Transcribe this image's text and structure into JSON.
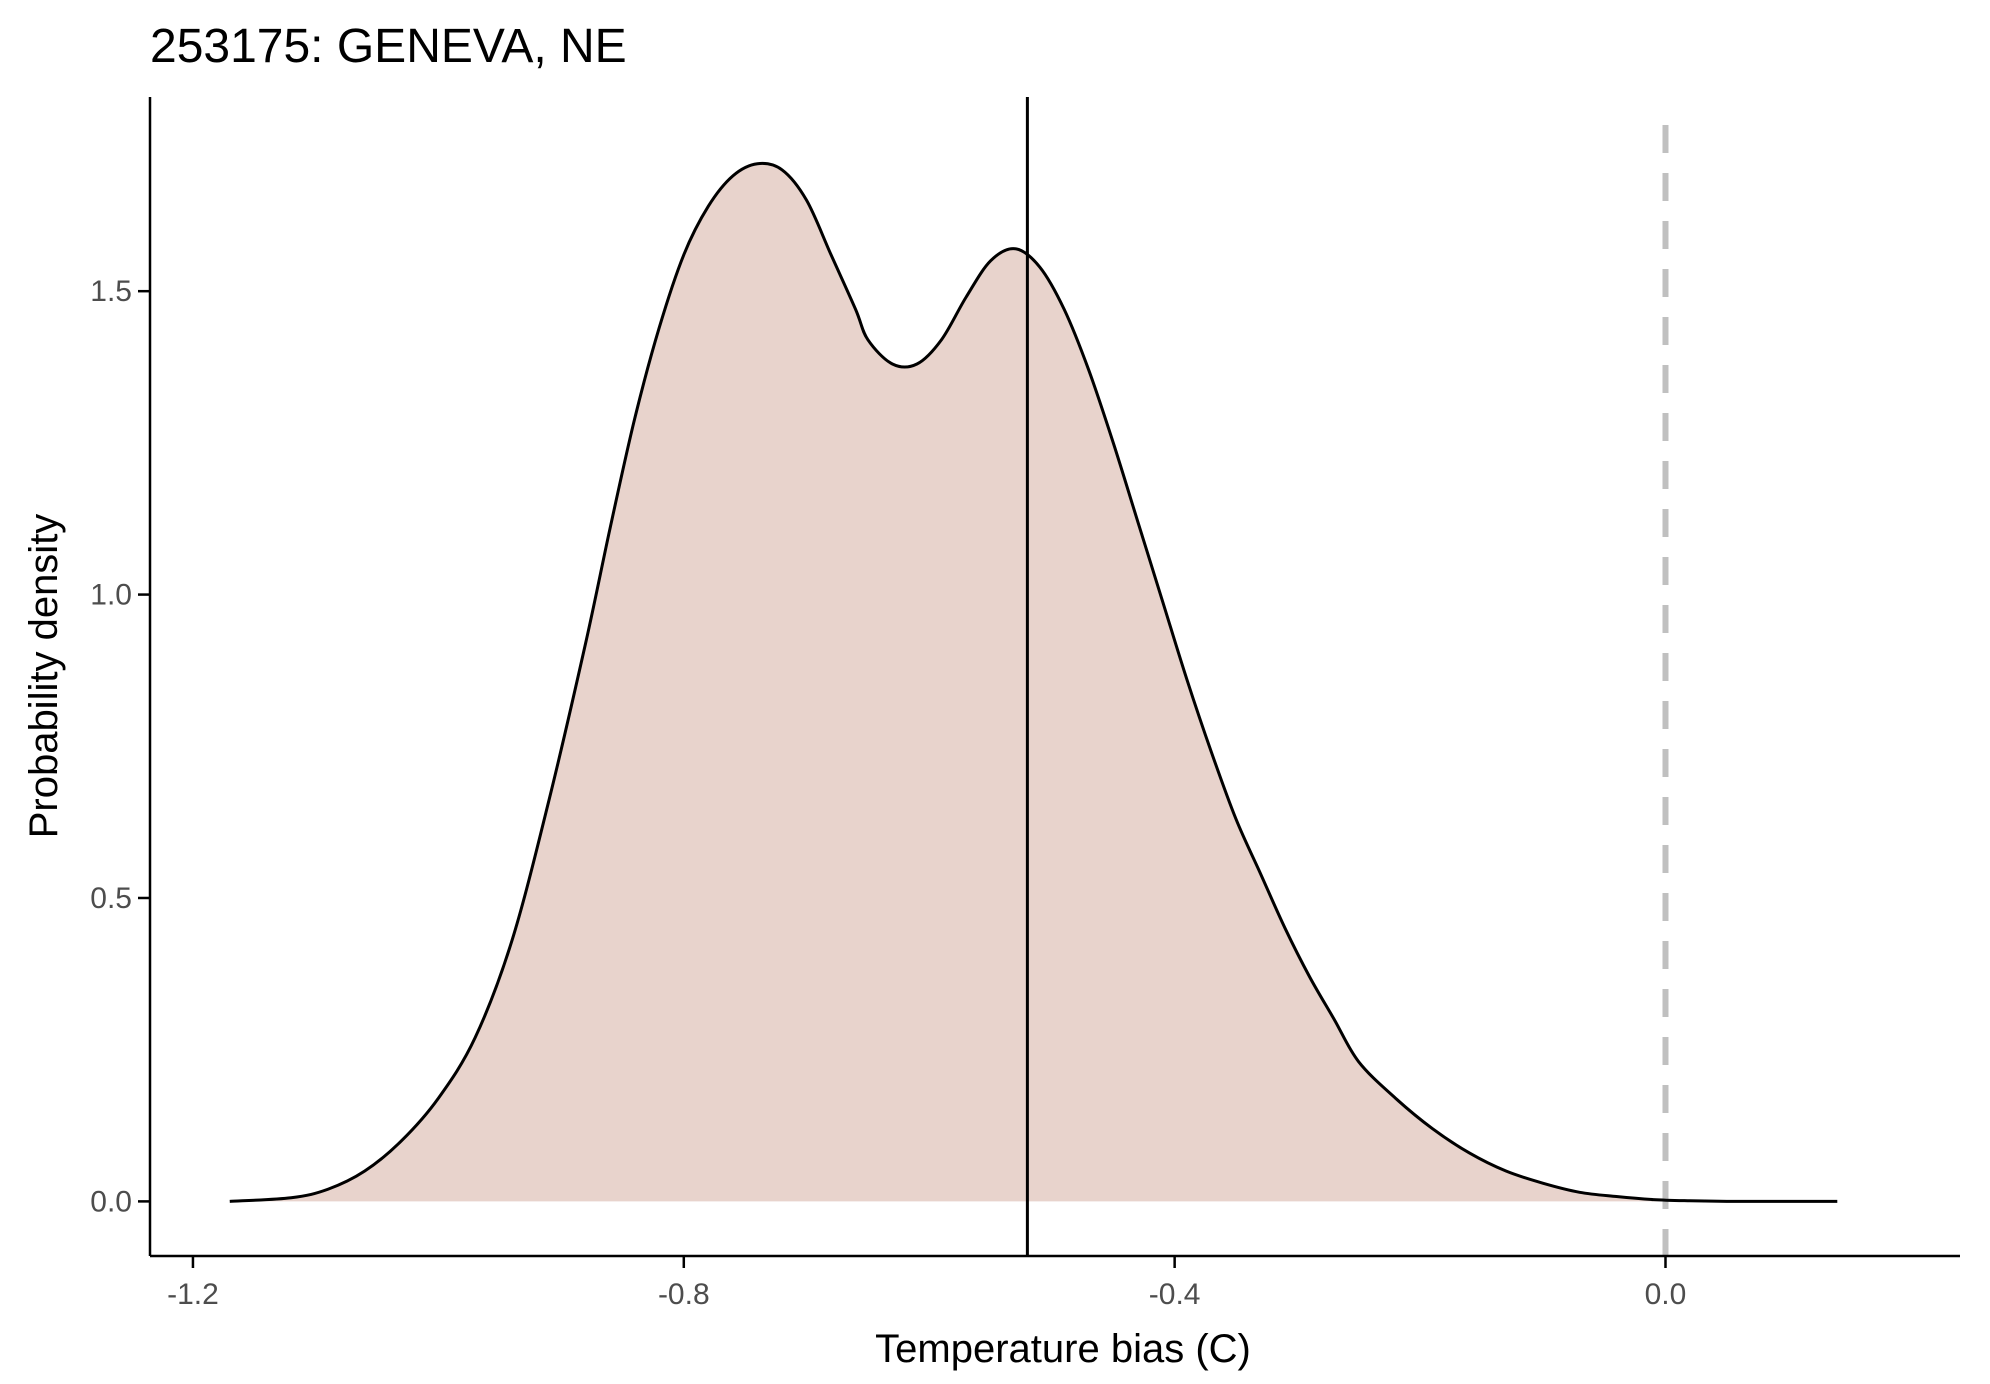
{
  "chart_data": {
    "type": "area",
    "title": "253175: GENEVA, NE",
    "xlabel": "Temperature bias (C)",
    "ylabel": "Probability density",
    "xlim": [
      -1.235,
      0.24
    ],
    "ylim": [
      -0.09,
      1.82
    ],
    "x_ticks": [
      -1.2,
      -0.8,
      -0.4,
      0.0
    ],
    "x_tick_labels": [
      "-1.2",
      "-0.8",
      "-0.4",
      "0.0"
    ],
    "y_ticks": [
      0.0,
      0.5,
      1.0,
      1.5
    ],
    "y_tick_labels": [
      "0.0",
      "0.5",
      "1.0",
      "1.5"
    ],
    "grid": false,
    "fill_color": "#e8d3cc",
    "line_color": "#000000",
    "reference_color": "#c0c0c0",
    "x": [
      -1.17,
      -1.12,
      -1.09,
      -1.06,
      -1.03,
      -1.0,
      -0.97,
      -0.94,
      -0.91,
      -0.88,
      -0.86,
      -0.84,
      -0.82,
      -0.8,
      -0.78,
      -0.76,
      -0.74,
      -0.72,
      -0.7,
      -0.68,
      -0.66,
      -0.65,
      -0.63,
      -0.61,
      -0.59,
      -0.57,
      -0.55,
      -0.53,
      -0.51,
      -0.49,
      -0.47,
      -0.45,
      -0.43,
      -0.41,
      -0.39,
      -0.37,
      -0.35,
      -0.33,
      -0.31,
      -0.29,
      -0.27,
      -0.25,
      -0.22,
      -0.19,
      -0.16,
      -0.13,
      -0.1,
      -0.07,
      -0.04,
      -0.01,
      0.02,
      0.05,
      0.08,
      0.11,
      0.14
    ],
    "values": [
      0.0,
      0.006,
      0.02,
      0.05,
      0.1,
      0.17,
      0.27,
      0.43,
      0.66,
      0.92,
      1.11,
      1.29,
      1.44,
      1.56,
      1.64,
      1.69,
      1.71,
      1.7,
      1.65,
      1.56,
      1.47,
      1.42,
      1.38,
      1.38,
      1.42,
      1.49,
      1.55,
      1.57,
      1.54,
      1.47,
      1.37,
      1.25,
      1.12,
      0.99,
      0.86,
      0.74,
      0.63,
      0.54,
      0.45,
      0.37,
      0.3,
      0.23,
      0.17,
      0.12,
      0.08,
      0.05,
      0.03,
      0.015,
      0.008,
      0.003,
      0.001,
      0.0,
      0.0,
      0.0,
      0.0
    ],
    "mean_line_x": -0.52,
    "reference_line_x": 0.0
  }
}
